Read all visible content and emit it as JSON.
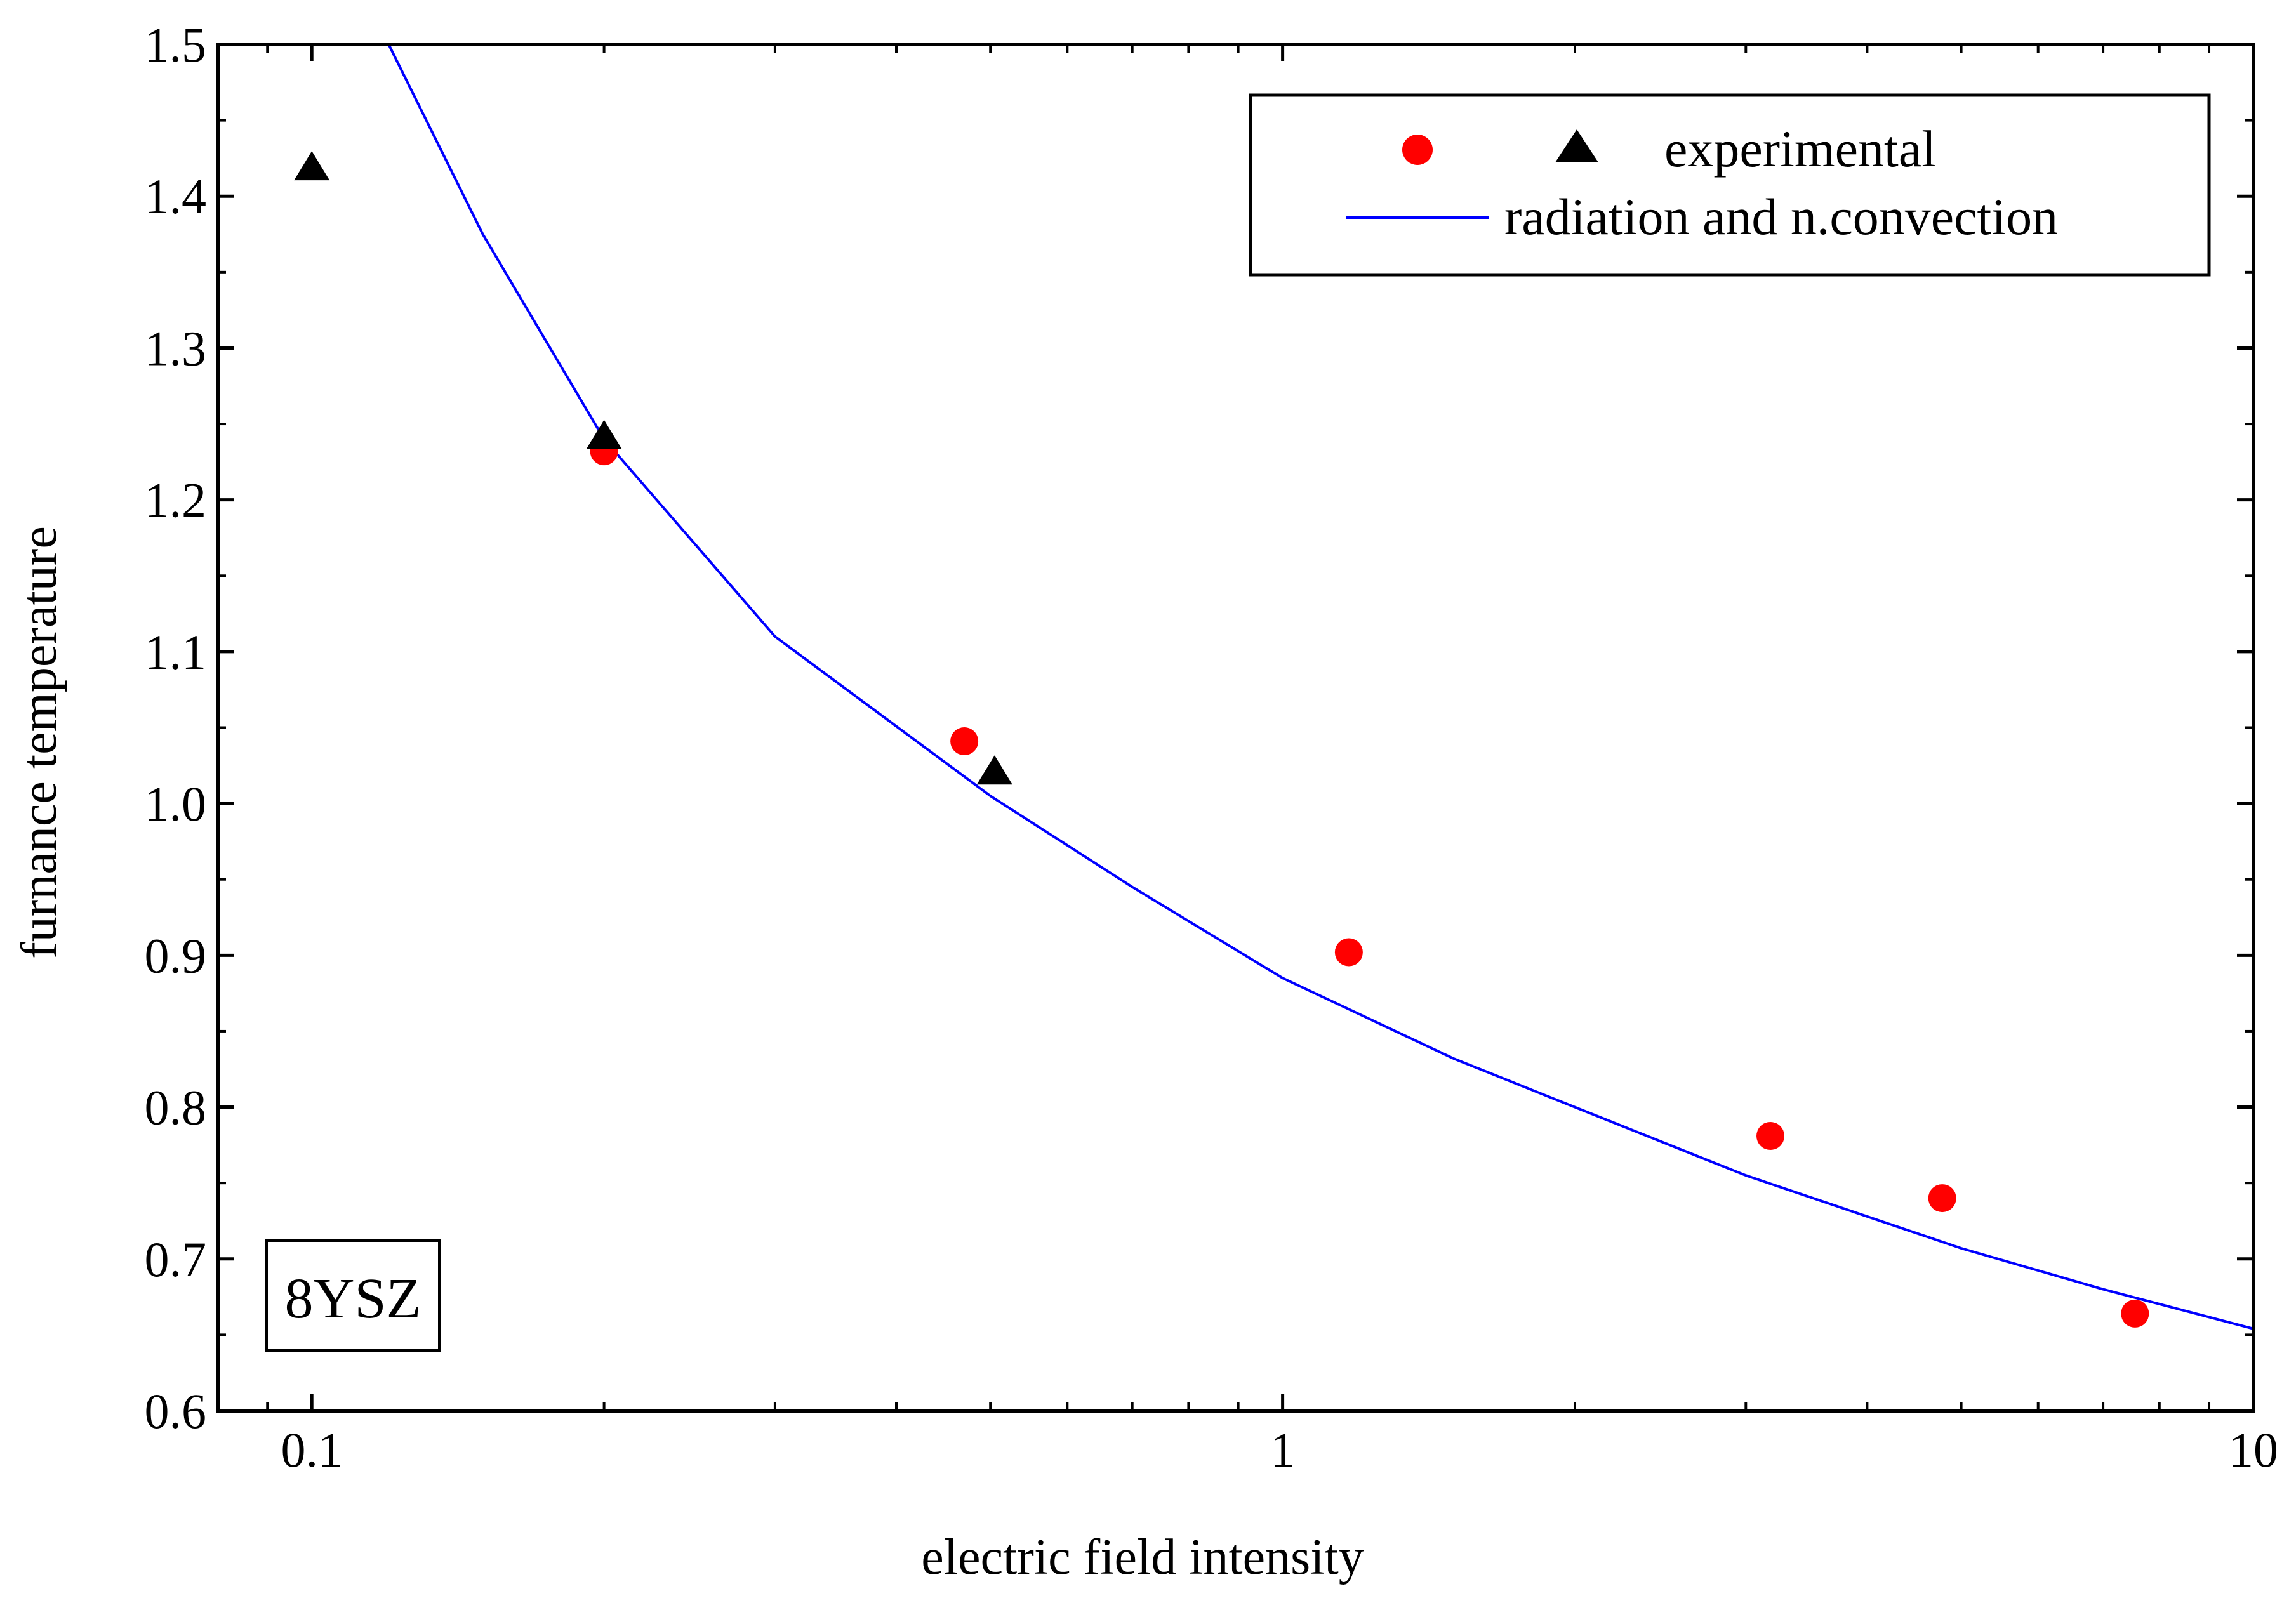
{
  "chart_data": {
    "type": "scatter",
    "title": "",
    "xlabel": "electric field intensity",
    "ylabel": "furnance temperature",
    "xscale": "log",
    "xlim": [
      0.08,
      10
    ],
    "ylim": [
      0.6,
      1.5
    ],
    "xticks": [
      {
        "value": 0.1,
        "label": "0.1"
      },
      {
        "value": 1,
        "label": "1"
      },
      {
        "value": 10,
        "label": "10"
      }
    ],
    "yticks": [
      {
        "value": 0.6,
        "label": "0.6"
      },
      {
        "value": 0.7,
        "label": "0.7"
      },
      {
        "value": 0.8,
        "label": "0.8"
      },
      {
        "value": 0.9,
        "label": "0.9"
      },
      {
        "value": 1.0,
        "label": "1.0"
      },
      {
        "value": 1.1,
        "label": "1.1"
      },
      {
        "value": 1.2,
        "label": "1.2"
      },
      {
        "value": 1.3,
        "label": "1.3"
      },
      {
        "value": 1.4,
        "label": "1.4"
      },
      {
        "value": 1.5,
        "label": "1.5"
      }
    ],
    "grid": false,
    "legend_position": "top-right",
    "series": [
      {
        "name": "experimental",
        "kind": "scatter",
        "marker": "circle",
        "color": "#ff0000",
        "points": [
          {
            "x": 0.2,
            "y": 1.232
          },
          {
            "x": 0.47,
            "y": 1.041
          },
          {
            "x": 1.17,
            "y": 0.902
          },
          {
            "x": 3.18,
            "y": 0.781
          },
          {
            "x": 4.78,
            "y": 0.74
          },
          {
            "x": 7.55,
            "y": 0.664
          }
        ]
      },
      {
        "name": "experimental",
        "kind": "scatter",
        "marker": "triangle",
        "color": "#000000",
        "points": [
          {
            "x": 0.1,
            "y": 1.418
          },
          {
            "x": 0.2,
            "y": 1.241
          },
          {
            "x": 0.505,
            "y": 1.02
          }
        ]
      },
      {
        "name": "radiation and n.convection",
        "kind": "line",
        "color": "#0000ff",
        "points": [
          {
            "x": 0.12,
            "y": 1.5
          },
          {
            "x": 0.15,
            "y": 1.375
          },
          {
            "x": 0.2,
            "y": 1.24
          },
          {
            "x": 0.3,
            "y": 1.11
          },
          {
            "x": 0.5,
            "y": 1.005
          },
          {
            "x": 0.7,
            "y": 0.945
          },
          {
            "x": 1.0,
            "y": 0.885
          },
          {
            "x": 1.5,
            "y": 0.832
          },
          {
            "x": 2.0,
            "y": 0.8
          },
          {
            "x": 3.0,
            "y": 0.755
          },
          {
            "x": 5.0,
            "y": 0.707
          },
          {
            "x": 7.0,
            "y": 0.68
          },
          {
            "x": 10.0,
            "y": 0.654
          }
        ]
      }
    ],
    "legend": [
      {
        "label": "experimental",
        "markers": [
          "circle",
          "triangle"
        ]
      },
      {
        "label": "radiation and n.convection",
        "markers": [
          "line"
        ]
      }
    ],
    "annotation": "8YSZ"
  }
}
